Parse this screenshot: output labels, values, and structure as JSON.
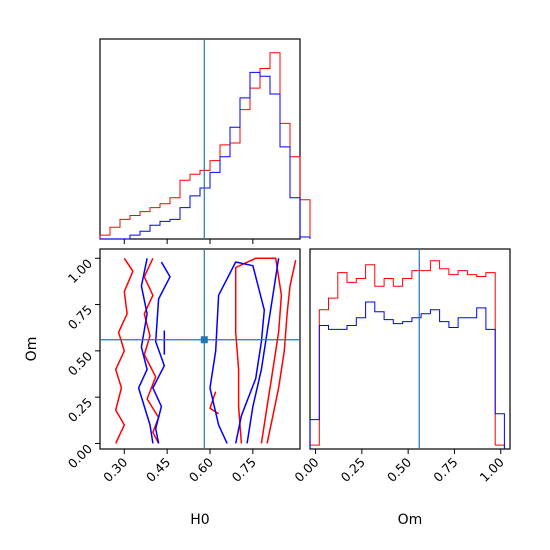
{
  "chart_data": {
    "type": "corner",
    "parameters": [
      "H0",
      "Om"
    ],
    "truth": {
      "H0": 0.58,
      "Om": 0.56
    },
    "colors": {
      "red": "#ff0000",
      "blue": "#0000ff",
      "truth": "#1f77b4"
    },
    "H0_hist": {
      "type": "histogram",
      "xlim": [
        0.215,
        0.915
      ],
      "bin_width": 0.035,
      "bin_start": 0.215,
      "red": [
        0.02,
        0.06,
        0.1,
        0.12,
        0.14,
        0.16,
        0.18,
        0.21,
        0.3,
        0.33,
        0.35,
        0.4,
        0.48,
        0.49,
        0.66,
        0.77,
        0.87,
        0.95,
        0.59,
        0.42,
        0.2
      ],
      "blue": [
        0,
        0,
        0,
        0.02,
        0.04,
        0.07,
        0.09,
        0.1,
        0.16,
        0.22,
        0.26,
        0.34,
        0.42,
        0.57,
        0.72,
        0.85,
        0.83,
        0.74,
        0.47,
        0.21,
        0.01
      ]
    },
    "Om_hist": {
      "type": "histogram",
      "xlim": [
        -0.03,
        1.05
      ],
      "bin_width": 0.05,
      "bin_start": -0.03,
      "red": [
        0.02,
        0.71,
        0.77,
        0.9,
        0.85,
        0.87,
        0.94,
        0.83,
        0.87,
        0.83,
        0.87,
        0.91,
        0.91,
        0.96,
        0.92,
        0.89,
        0.91,
        0.89,
        0.88,
        0.9,
        0.02
      ],
      "blue": [
        0.15,
        0.63,
        0.61,
        0.61,
        0.63,
        0.67,
        0.75,
        0.7,
        0.66,
        0.64,
        0.65,
        0.67,
        0.69,
        0.71,
        0.65,
        0.62,
        0.67,
        0.67,
        0.72,
        0.61,
        0.18
      ]
    },
    "scatter_2d": {
      "xlim": [
        0.215,
        0.915
      ],
      "ylim": [
        -0.03,
        1.05
      ],
      "red_contours": [
        [
          [
            0.3,
            1.0
          ],
          [
            0.33,
            0.93
          ],
          [
            0.3,
            0.82
          ],
          [
            0.31,
            0.7
          ],
          [
            0.28,
            0.6
          ],
          [
            0.3,
            0.5
          ],
          [
            0.27,
            0.4
          ],
          [
            0.29,
            0.3
          ],
          [
            0.27,
            0.18
          ],
          [
            0.3,
            0.1
          ],
          [
            0.27,
            0.0
          ]
        ],
        [
          [
            0.4,
            1.0
          ],
          [
            0.37,
            0.9
          ],
          [
            0.4,
            0.8
          ],
          [
            0.37,
            0.7
          ],
          [
            0.39,
            0.58
          ],
          [
            0.37,
            0.48
          ],
          [
            0.41,
            0.36
          ],
          [
            0.38,
            0.24
          ],
          [
            0.42,
            0.14
          ],
          [
            0.4,
            0.06
          ],
          [
            0.42,
            0.0
          ]
        ],
        [
          [
            0.71,
            0.0
          ],
          [
            0.7,
            0.2
          ],
          [
            0.7,
            0.4
          ],
          [
            0.69,
            0.6
          ],
          [
            0.69,
            0.8
          ],
          [
            0.69,
            0.95
          ],
          [
            0.76,
            1.0
          ],
          [
            0.83,
            1.0
          ],
          [
            0.85,
            0.8
          ],
          [
            0.84,
            0.6
          ],
          [
            0.82,
            0.4
          ],
          [
            0.8,
            0.2
          ],
          [
            0.78,
            0.0
          ]
        ],
        [
          [
            0.62,
            0.28
          ],
          [
            0.6,
            0.19
          ],
          [
            0.63,
            0.16
          ]
        ],
        [
          [
            0.9,
            0.99
          ],
          [
            0.88,
            0.85
          ],
          [
            0.87,
            0.7
          ],
          [
            0.86,
            0.5
          ],
          [
            0.84,
            0.3
          ],
          [
            0.82,
            0.15
          ],
          [
            0.8,
            0.0
          ]
        ]
      ],
      "blue_contours": [
        [
          [
            0.38,
            1.0
          ],
          [
            0.36,
            0.85
          ],
          [
            0.38,
            0.7
          ],
          [
            0.36,
            0.52
          ],
          [
            0.38,
            0.4
          ],
          [
            0.35,
            0.3
          ],
          [
            0.37,
            0.2
          ],
          [
            0.39,
            0.1
          ],
          [
            0.4,
            0.0
          ]
        ],
        [
          [
            0.43,
            0.98
          ],
          [
            0.46,
            0.9
          ],
          [
            0.42,
            0.78
          ],
          [
            0.41,
            0.55
          ],
          [
            0.44,
            0.42
          ],
          [
            0.4,
            0.3
          ],
          [
            0.43,
            0.2
          ],
          [
            0.41,
            0.08
          ],
          [
            0.42,
            0.0
          ]
        ],
        [
          [
            0.66,
            0.0
          ],
          [
            0.63,
            0.1
          ],
          [
            0.6,
            0.3
          ],
          [
            0.62,
            0.5
          ],
          [
            0.63,
            0.8
          ],
          [
            0.69,
            0.98
          ],
          [
            0.75,
            0.96
          ],
          [
            0.79,
            0.72
          ],
          [
            0.78,
            0.55
          ],
          [
            0.76,
            0.35
          ],
          [
            0.71,
            0.15
          ],
          [
            0.69,
            0.0
          ]
        ],
        [
          [
            0.44,
            0.61
          ],
          [
            0.44,
            0.48
          ]
        ],
        [
          [
            0.84,
            1.0
          ],
          [
            0.82,
            0.8
          ],
          [
            0.8,
            0.6
          ],
          [
            0.78,
            0.4
          ],
          [
            0.75,
            0.2
          ],
          [
            0.73,
            0.0
          ]
        ]
      ]
    },
    "H0_ticks": [
      0.3,
      0.45,
      0.6,
      0.75
    ],
    "H0_tick_labels": [
      "0.30",
      "0.45",
      "0.60",
      "0.75"
    ],
    "Om_ticks": [
      0.0,
      0.25,
      0.5,
      0.75,
      1.0
    ],
    "Om_tick_labels": [
      "0.00",
      "0.25",
      "0.50",
      "0.75",
      "1.00"
    ],
    "xlabel_H0": "H0",
    "xlabel_Om": "Om",
    "ylabel_Om": "Om"
  }
}
